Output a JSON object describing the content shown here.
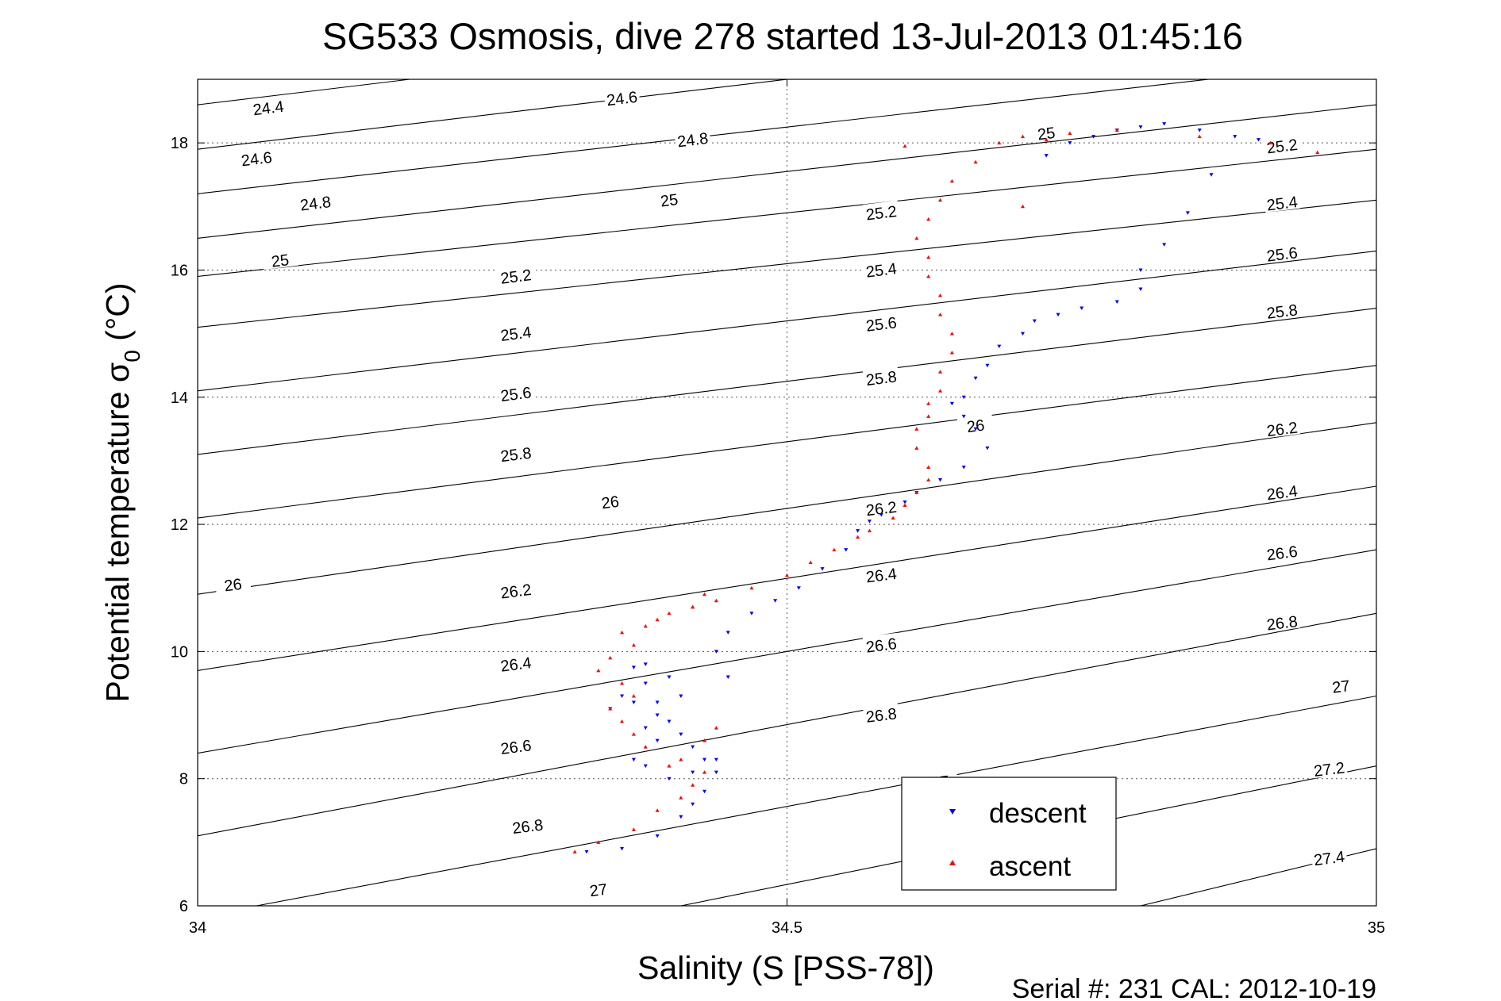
{
  "chart_data": {
    "type": "scatter",
    "title": "SG533 Osmosis, dive 278 started 13-Jul-2013 01:45:16",
    "xlabel": "Salinity (S [PSS-78])",
    "ylabel_main": "Potential temperature σ",
    "ylabel_sub": "0",
    "ylabel_unit": " (°C)",
    "xlim": [
      34,
      35
    ],
    "ylim": [
      6,
      19
    ],
    "xticks": [
      34,
      34.5,
      35
    ],
    "xtick_labels": [
      "34",
      "34.5",
      "35"
    ],
    "yticks": [
      6,
      8,
      10,
      12,
      14,
      16,
      18
    ],
    "ytick_labels": [
      "6",
      "8",
      "10",
      "12",
      "14",
      "16",
      "18"
    ],
    "grid": true,
    "legend": "bottom-center",
    "footer": "Serial #: 231  CAL: 2012-10-19",
    "contours": [
      {
        "level": 24.4,
        "x": [
          34.0,
          34.18
        ],
        "y": [
          18.6,
          19.0
        ]
      },
      {
        "level": 24.6,
        "x": [
          34.0,
          35.0
        ],
        "y": [
          17.9,
          20.1
        ]
      },
      {
        "level": 24.8,
        "x": [
          34.0,
          35.0
        ],
        "y": [
          17.2,
          19.3
        ]
      },
      {
        "level": 25,
        "x": [
          34.0,
          35.0
        ],
        "y": [
          16.5,
          18.6
        ]
      },
      {
        "level": 25.2,
        "x": [
          34.0,
          35.0
        ],
        "y": [
          15.9,
          17.9
        ]
      },
      {
        "level": 25.4,
        "x": [
          34.0,
          35.0
        ],
        "y": [
          15.1,
          17.1
        ]
      },
      {
        "level": 25.6,
        "x": [
          34.0,
          35.0
        ],
        "y": [
          14.1,
          16.3
        ]
      },
      {
        "level": 25.8,
        "x": [
          34.0,
          35.0
        ],
        "y": [
          13.1,
          15.4
        ]
      },
      {
        "level": 26,
        "x": [
          34.0,
          35.0
        ],
        "y": [
          12.1,
          14.5
        ]
      },
      {
        "level": 26.2,
        "x": [
          34.0,
          35.0
        ],
        "y": [
          10.9,
          13.6
        ]
      },
      {
        "level": 26.4,
        "x": [
          34.0,
          35.0
        ],
        "y": [
          9.7,
          12.6
        ]
      },
      {
        "level": 26.6,
        "x": [
          34.0,
          35.0
        ],
        "y": [
          8.4,
          11.6
        ]
      },
      {
        "level": 26.8,
        "x": [
          34.0,
          35.0
        ],
        "y": [
          7.1,
          10.6
        ]
      },
      {
        "level": 27,
        "x": [
          34.05,
          35.0
        ],
        "y": [
          6.0,
          9.3
        ]
      },
      {
        "level": 27.2,
        "x": [
          34.41,
          35.0
        ],
        "y": [
          6.0,
          8.2
        ]
      },
      {
        "level": 27.4,
        "x": [
          34.8,
          35.0
        ],
        "y": [
          6.0,
          6.9
        ]
      }
    ],
    "contour_labels": [
      {
        "text": "24.4",
        "x": 34.06,
        "y": 18.55
      },
      {
        "text": "24.6",
        "x": 34.36,
        "y": 18.7
      },
      {
        "text": "24.6",
        "x": 34.05,
        "y": 17.75
      },
      {
        "text": "24.8",
        "x": 34.42,
        "y": 18.05
      },
      {
        "text": "24.8",
        "x": 34.1,
        "y": 17.05
      },
      {
        "text": "25",
        "x": 34.4,
        "y": 17.1
      },
      {
        "text": "25",
        "x": 34.07,
        "y": 16.15
      },
      {
        "text": "25",
        "x": 34.72,
        "y": 18.15
      },
      {
        "text": "25.2",
        "x": 34.27,
        "y": 15.9
      },
      {
        "text": "25.2",
        "x": 34.58,
        "y": 16.9
      },
      {
        "text": "25.2",
        "x": 34.92,
        "y": 17.95
      },
      {
        "text": "25.4",
        "x": 34.27,
        "y": 15.0
      },
      {
        "text": "25.4",
        "x": 34.58,
        "y": 16.0
      },
      {
        "text": "25.4",
        "x": 34.92,
        "y": 17.05
      },
      {
        "text": "25.6",
        "x": 34.27,
        "y": 14.05
      },
      {
        "text": "25.6",
        "x": 34.58,
        "y": 15.15
      },
      {
        "text": "25.6",
        "x": 34.92,
        "y": 16.25
      },
      {
        "text": "25.8",
        "x": 34.27,
        "y": 13.1
      },
      {
        "text": "25.8",
        "x": 34.58,
        "y": 14.3
      },
      {
        "text": "25.8",
        "x": 34.92,
        "y": 15.35
      },
      {
        "text": "26",
        "x": 34.35,
        "y": 12.35
      },
      {
        "text": "26",
        "x": 34.66,
        "y": 13.55
      },
      {
        "text": "26",
        "x": 34.03,
        "y": 11.05
      },
      {
        "text": "26.2",
        "x": 34.27,
        "y": 10.95
      },
      {
        "text": "26.2",
        "x": 34.58,
        "y": 12.25
      },
      {
        "text": "26.2",
        "x": 34.92,
        "y": 13.5
      },
      {
        "text": "26.4",
        "x": 34.27,
        "y": 9.8
      },
      {
        "text": "26.4",
        "x": 34.58,
        "y": 11.2
      },
      {
        "text": "26.4",
        "x": 34.92,
        "y": 12.5
      },
      {
        "text": "26.6",
        "x": 34.27,
        "y": 8.5
      },
      {
        "text": "26.6",
        "x": 34.58,
        "y": 10.1
      },
      {
        "text": "26.6",
        "x": 34.92,
        "y": 11.55
      },
      {
        "text": "26.8",
        "x": 34.28,
        "y": 7.25
      },
      {
        "text": "26.8",
        "x": 34.58,
        "y": 9.0
      },
      {
        "text": "26.8",
        "x": 34.92,
        "y": 10.45
      },
      {
        "text": "27",
        "x": 34.34,
        "y": 6.25
      },
      {
        "text": "27",
        "x": 34.63,
        "y": 7.95
      },
      {
        "text": "27",
        "x": 34.97,
        "y": 9.45
      },
      {
        "text": "27.2",
        "x": 34.96,
        "y": 8.15
      },
      {
        "text": "27.4",
        "x": 34.96,
        "y": 6.75
      }
    ],
    "series": [
      {
        "name": "descent",
        "color": "#0000ff",
        "marker": "triangle-down",
        "x": [
          34.33,
          34.36,
          34.39,
          34.41,
          34.42,
          34.43,
          34.44,
          34.43,
          34.42,
          34.41,
          34.4,
          34.39,
          34.39,
          34.41,
          34.4,
          34.38,
          34.37,
          34.38,
          34.36,
          34.35,
          34.37,
          34.38,
          34.39,
          34.37,
          34.38,
          34.4,
          34.42,
          34.44,
          34.45,
          34.44,
          34.45,
          34.47,
          34.49,
          34.51,
          34.53,
          34.55,
          34.56,
          34.57,
          34.58,
          34.6,
          34.61,
          34.63,
          34.65,
          34.67,
          34.66,
          34.65,
          34.64,
          34.65,
          34.66,
          34.67,
          34.68,
          34.7,
          34.71,
          34.73,
          34.75,
          34.78,
          34.8,
          34.8,
          34.82,
          34.84,
          34.86,
          34.72,
          34.74,
          34.76,
          34.78,
          34.8,
          34.82,
          34.85,
          34.88,
          34.9
        ],
        "y": [
          6.85,
          6.9,
          7.1,
          7.4,
          7.6,
          7.8,
          8.1,
          8.3,
          8.5,
          8.7,
          8.9,
          9.0,
          9.2,
          9.3,
          9.6,
          9.8,
          9.75,
          9.5,
          9.3,
          9.1,
          9.2,
          8.8,
          8.6,
          8.3,
          8.2,
          8.0,
          8.1,
          8.3,
          9.6,
          10.0,
          10.3,
          10.6,
          10.8,
          11.0,
          11.3,
          11.6,
          11.9,
          12.05,
          12.15,
          12.35,
          12.5,
          12.7,
          12.9,
          13.2,
          13.5,
          13.7,
          13.9,
          14.0,
          14.3,
          14.5,
          14.8,
          15.0,
          15.2,
          15.3,
          15.4,
          15.5,
          15.7,
          16.0,
          16.4,
          16.9,
          17.5,
          17.8,
          18.0,
          18.1,
          18.2,
          18.25,
          18.3,
          18.2,
          18.1,
          18.05
        ]
      },
      {
        "name": "ascent",
        "color": "#ff0000",
        "marker": "triangle-up",
        "x": [
          34.32,
          34.34,
          34.37,
          34.39,
          34.41,
          34.42,
          34.43,
          34.41,
          34.4,
          34.38,
          34.37,
          34.36,
          34.35,
          34.37,
          34.36,
          34.34,
          34.35,
          34.37,
          34.36,
          34.38,
          34.39,
          34.4,
          34.42,
          34.44,
          34.43,
          34.42,
          34.43,
          34.44,
          34.47,
          34.5,
          34.52,
          34.54,
          34.56,
          34.57,
          34.59,
          34.6,
          34.61,
          34.62,
          34.62,
          34.61,
          34.61,
          34.62,
          34.62,
          34.63,
          34.63,
          34.64,
          34.64,
          34.63,
          34.63,
          34.62,
          34.62,
          34.61,
          34.62,
          34.63,
          34.64,
          34.66,
          34.68,
          34.7,
          34.72,
          34.74,
          34.78,
          34.85,
          34.91,
          34.95,
          34.6,
          34.7
        ],
        "y": [
          6.85,
          7.0,
          7.2,
          7.5,
          7.7,
          7.9,
          8.1,
          8.3,
          8.2,
          8.5,
          8.7,
          8.9,
          9.1,
          9.3,
          9.5,
          9.7,
          9.9,
          10.1,
          10.3,
          10.4,
          10.5,
          10.6,
          10.7,
          8.8,
          8.6,
          10.7,
          10.9,
          10.8,
          11.0,
          11.2,
          11.4,
          11.6,
          11.8,
          11.9,
          12.1,
          12.3,
          12.5,
          12.7,
          12.9,
          13.2,
          13.5,
          13.7,
          13.9,
          14.1,
          14.4,
          14.7,
          15.0,
          15.3,
          15.6,
          15.9,
          16.2,
          16.5,
          16.8,
          17.1,
          17.4,
          17.7,
          18.0,
          18.1,
          18.05,
          18.15,
          18.2,
          18.1,
          18.0,
          17.85,
          17.95,
          17.0
        ]
      }
    ]
  }
}
